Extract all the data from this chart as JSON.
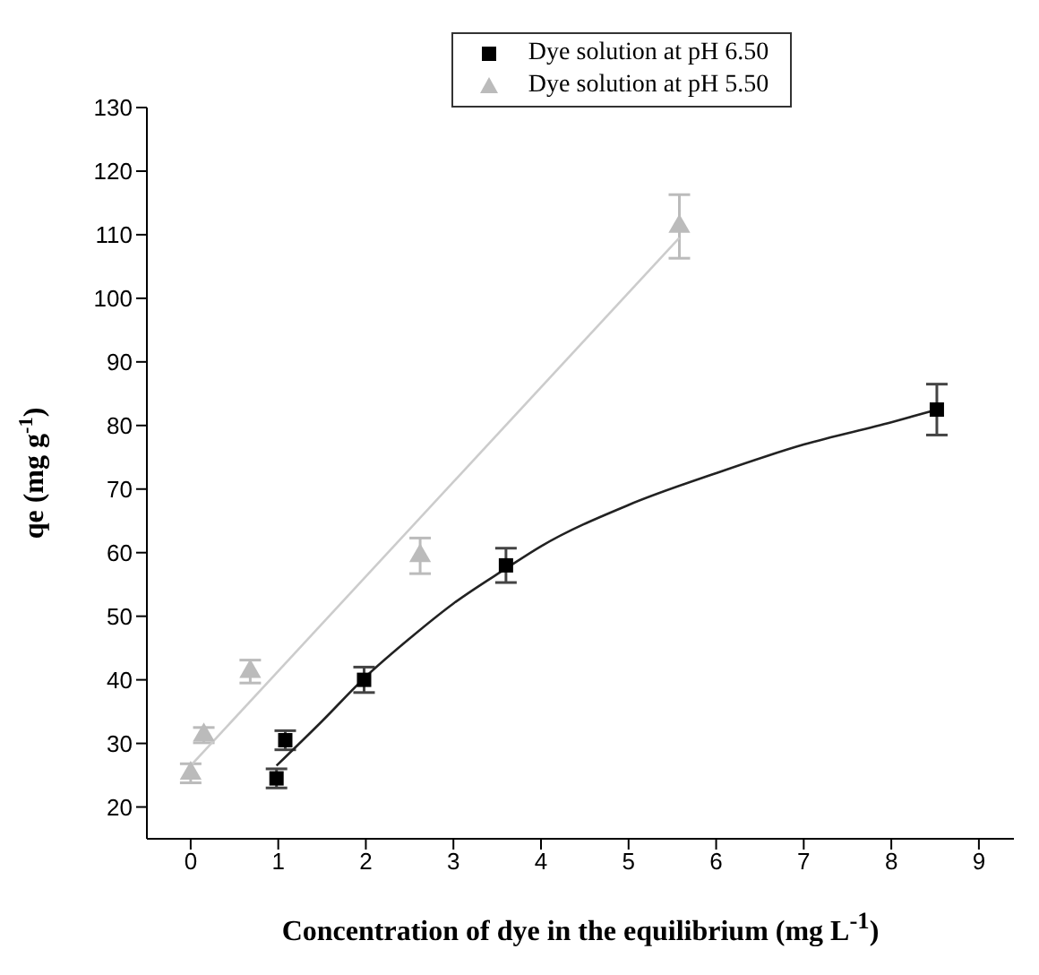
{
  "chart_data": {
    "type": "scatter",
    "xlabel": "Concentration of dye in the equilibrium (mg L$^{-1}$)",
    "ylabel": "qe (mg g$^{-1}$)",
    "xlim": [
      -0.5,
      9.4
    ],
    "xticks": [
      0,
      1,
      2,
      3,
      4,
      5,
      6,
      7,
      8,
      9
    ],
    "ylim": [
      15,
      130
    ],
    "yticks": [
      20,
      30,
      40,
      50,
      60,
      70,
      80,
      90,
      100,
      110,
      120,
      130
    ],
    "grid": false,
    "legend": "top",
    "series": [
      {
        "name": "Dye solution at pH 6.50",
        "type": "scatter",
        "marker": "square",
        "color": "#000000",
        "x": [
          0.98,
          1.08,
          1.98,
          3.6,
          8.52
        ],
        "values": [
          24.5,
          30.5,
          40,
          58,
          82.5
        ],
        "errors": [
          1.5,
          1.5,
          2,
          2.7,
          4
        ]
      },
      {
        "name": "Dye solution at pH 5.50",
        "type": "scatter",
        "marker": "triangle",
        "color": "#bbbbbb",
        "x": [
          0,
          0.15,
          0.68,
          2.62,
          5.58
        ],
        "values": [
          25.3,
          31.3,
          41.3,
          59.5,
          111.3
        ],
        "errors": [
          1.5,
          1.2,
          1.8,
          2.8,
          5
        ]
      },
      {
        "type": "line",
        "marker": "none",
        "color": "#222222",
        "x": [
          0.98,
          1.5,
          2,
          2.5,
          3,
          3.6,
          4,
          5,
          6,
          7,
          8,
          8.52
        ],
        "values": [
          26.5,
          33.5,
          40.5,
          46.5,
          52,
          57.5,
          61,
          67.5,
          72.5,
          77,
          80.5,
          82.5
        ]
      },
      {
        "type": "line",
        "marker": "none",
        "color": "#cccccc",
        "x": [
          0,
          5.58
        ],
        "values": [
          26.5,
          109.5
        ]
      }
    ]
  }
}
